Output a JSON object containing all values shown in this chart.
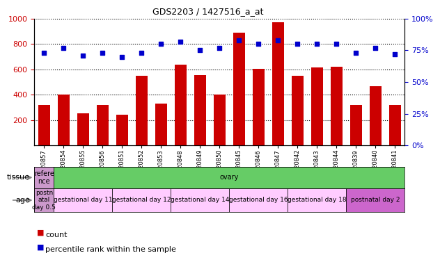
{
  "title": "GDS2203 / 1427516_a_at",
  "samples": [
    "GSM120857",
    "GSM120854",
    "GSM120855",
    "GSM120856",
    "GSM120851",
    "GSM120852",
    "GSM120853",
    "GSM120848",
    "GSM120849",
    "GSM120850",
    "GSM120845",
    "GSM120846",
    "GSM120847",
    "GSM120842",
    "GSM120843",
    "GSM120844",
    "GSM120839",
    "GSM120840",
    "GSM120841"
  ],
  "counts": [
    320,
    400,
    255,
    320,
    245,
    550,
    330,
    640,
    555,
    400,
    890,
    605,
    970,
    550,
    615,
    620,
    320,
    470,
    320
  ],
  "percentiles": [
    73,
    77,
    71,
    73,
    70,
    73,
    80,
    82,
    75,
    77,
    83,
    80,
    83,
    80,
    80,
    80,
    73,
    77,
    72
  ],
  "bar_color": "#cc0000",
  "dot_color": "#0000cc",
  "ylim_left": [
    0,
    1000
  ],
  "ylim_right": [
    0,
    100
  ],
  "yticks_left": [
    200,
    400,
    600,
    800,
    1000
  ],
  "yticks_right": [
    0,
    25,
    50,
    75,
    100
  ],
  "tissue_row": {
    "label": "tissue",
    "cells": [
      {
        "text": "refere\nnce",
        "color": "#cc99cc",
        "span": 1
      },
      {
        "text": "ovary",
        "color": "#66cc66",
        "span": 18
      }
    ]
  },
  "age_row": {
    "label": "age",
    "cells": [
      {
        "text": "postn\natal\nday 0.5",
        "color": "#cc99cc",
        "span": 1
      },
      {
        "text": "gestational day 11",
        "color": "#ffccff",
        "span": 3
      },
      {
        "text": "gestational day 12",
        "color": "#ffccff",
        "span": 3
      },
      {
        "text": "gestational day 14",
        "color": "#ffccff",
        "span": 3
      },
      {
        "text": "gestational day 16",
        "color": "#ffccff",
        "span": 3
      },
      {
        "text": "gestational day 18",
        "color": "#ffccff",
        "span": 3
      },
      {
        "text": "postnatal day 2",
        "color": "#cc66cc",
        "span": 3
      }
    ]
  },
  "background_color": "#ffffff",
  "tick_label_color_left": "#cc0000",
  "tick_label_color_right": "#0000cc"
}
